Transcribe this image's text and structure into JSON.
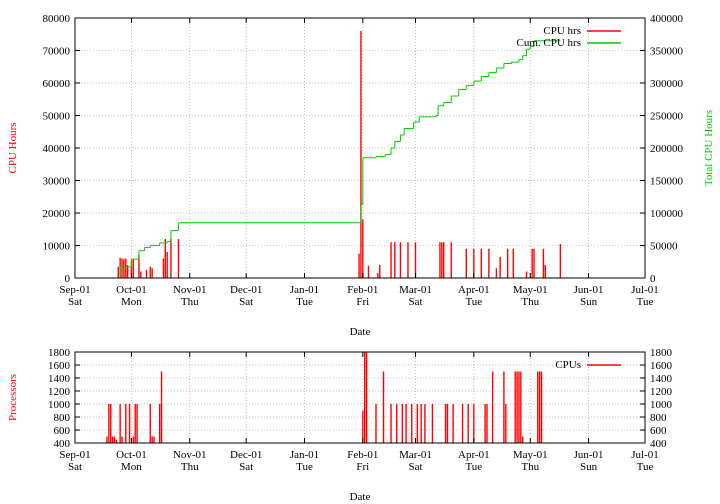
{
  "chart_data": [
    {
      "type": "bar",
      "xlabel": "Date",
      "ylabel": "CPU Hours",
      "y2label": "Total CPU Hours",
      "ylim": [
        0,
        80000
      ],
      "y2lim": [
        0,
        400000
      ],
      "xlim": [
        "Sep-01",
        "Jul-01"
      ],
      "grid": true,
      "legend_position": "top-right",
      "yticks": [
        "0",
        "10000",
        "20000",
        "30000",
        "40000",
        "50000",
        "60000",
        "70000",
        "80000"
      ],
      "y2ticks": [
        "0",
        "50000",
        "100000",
        "150000",
        "200000",
        "250000",
        "300000",
        "350000",
        "400000"
      ],
      "xticks": [
        {
          "date": "Sep-01",
          "day": "Sat"
        },
        {
          "date": "Oct-01",
          "day": "Mon"
        },
        {
          "date": "Nov-01",
          "day": "Thu"
        },
        {
          "date": "Dec-01",
          "day": "Sat"
        },
        {
          "date": "Jan-01",
          "day": "Tue"
        },
        {
          "date": "Feb-01",
          "day": "Fri"
        },
        {
          "date": "Mar-01",
          "day": "Sat"
        },
        {
          "date": "Apr-01",
          "day": "Tue"
        },
        {
          "date": "May-01",
          "day": "Thu"
        },
        {
          "date": "Jun-01",
          "day": "Sun"
        },
        {
          "date": "Jul-01",
          "day": "Tue"
        }
      ],
      "series": [
        {
          "name": "CPU hrs",
          "style": "impulses",
          "color": "#ff0000",
          "x_days": [
            23,
            24,
            25,
            26,
            27,
            28,
            30,
            31,
            34,
            35,
            38,
            40,
            41,
            47,
            48,
            49,
            51,
            55,
            151,
            152,
            153,
            156,
            161,
            162,
            168,
            170,
            173,
            177,
            181,
            194,
            195,
            196,
            200,
            208,
            212,
            216,
            220,
            224,
            226,
            230,
            233,
            240,
            243,
            244,
            249,
            250,
            258
          ],
          "values": [
            3500,
            6200,
            6000,
            5800,
            6000,
            4000,
            5500,
            5800,
            7000,
            2000,
            2500,
            3500,
            3000,
            6000,
            12000,
            8000,
            12000,
            12000,
            7500,
            76000,
            18000,
            3800,
            1500,
            4000,
            11000,
            11000,
            11000,
            11000,
            11000,
            11000,
            11000,
            11000,
            11000,
            9000,
            9000,
            9000,
            9000,
            3000,
            6500,
            9000,
            9000,
            2000,
            9000,
            9000,
            9000,
            4000,
            10500
          ]
        },
        {
          "name": "Cum. CPU hrs",
          "style": "steps",
          "color": "#00cc00",
          "x_days": [
            0,
            24,
            30,
            34,
            37,
            40,
            45,
            49,
            51,
            55,
            150,
            152,
            153,
            160,
            165,
            168,
            170,
            173,
            175,
            180,
            183,
            186,
            192,
            193,
            196,
            200,
            204,
            208,
            212,
            216,
            220,
            224,
            228,
            232,
            236,
            238,
            240,
            242,
            244,
            258
          ],
          "values": [
            0,
            17000,
            29000,
            42000,
            47000,
            50000,
            54000,
            56000,
            73000,
            85000,
            85000,
            113000,
            185000,
            187000,
            190000,
            200000,
            210000,
            220000,
            230000,
            240000,
            248000,
            248000,
            250000,
            265000,
            270000,
            280000,
            290000,
            296000,
            303000,
            310000,
            316000,
            323000,
            330000,
            332000,
            336000,
            342000,
            352000,
            356000,
            365000,
            365000
          ]
        }
      ]
    },
    {
      "type": "bar",
      "xlabel": "Date",
      "ylabel": "Processors",
      "ylim": [
        400,
        1800
      ],
      "y2lim": [
        400,
        1800
      ],
      "xlim": [
        "Sep-01",
        "Jul-01"
      ],
      "grid": true,
      "legend_position": "top-right",
      "yticks": [
        "400",
        "600",
        "800",
        "1000",
        "1200",
        "1400",
        "1600",
        "1800"
      ],
      "y2ticks": [
        "400",
        "600",
        "800",
        "1000",
        "1200",
        "1400",
        "1600",
        "1800"
      ],
      "xticks": [
        {
          "date": "Sep-01",
          "day": "Sat"
        },
        {
          "date": "Oct-01",
          "day": "Mon"
        },
        {
          "date": "Nov-01",
          "day": "Thu"
        },
        {
          "date": "Dec-01",
          "day": "Sat"
        },
        {
          "date": "Jan-01",
          "day": "Tue"
        },
        {
          "date": "Feb-01",
          "day": "Fri"
        },
        {
          "date": "Mar-01",
          "day": "Sat"
        },
        {
          "date": "Apr-01",
          "day": "Tue"
        },
        {
          "date": "May-01",
          "day": "Thu"
        },
        {
          "date": "Jun-01",
          "day": "Sun"
        },
        {
          "date": "Jul-01",
          "day": "Tue"
        }
      ],
      "series": [
        {
          "name": "CPUs",
          "style": "impulses",
          "color": "#ff0000",
          "x_days": [
            17,
            18,
            19,
            20,
            21,
            22,
            24,
            25,
            27,
            29,
            31,
            32,
            33,
            40,
            41,
            42,
            45,
            46,
            153,
            154,
            155,
            160,
            164,
            168,
            171,
            174,
            176,
            179,
            182,
            184,
            186,
            190,
            197,
            198,
            201,
            206,
            209,
            212,
            218,
            219,
            222,
            228,
            229,
            234,
            235,
            236,
            237,
            238,
            246,
            247,
            248
          ],
          "values": [
            500,
            1000,
            1000,
            500,
            500,
            450,
            1000,
            500,
            1000,
            1000,
            500,
            1000,
            1000,
            1000,
            500,
            500,
            1000,
            1500,
            900,
            1800,
            1800,
            1000,
            1500,
            1000,
            1000,
            1000,
            1000,
            1000,
            1000,
            1000,
            1000,
            1000,
            1000,
            1000,
            1000,
            1000,
            1000,
            1000,
            1000,
            1000,
            1500,
            1500,
            1000,
            1500,
            1500,
            1500,
            1500,
            500,
            1500,
            1500,
            1500
          ]
        }
      ]
    }
  ]
}
